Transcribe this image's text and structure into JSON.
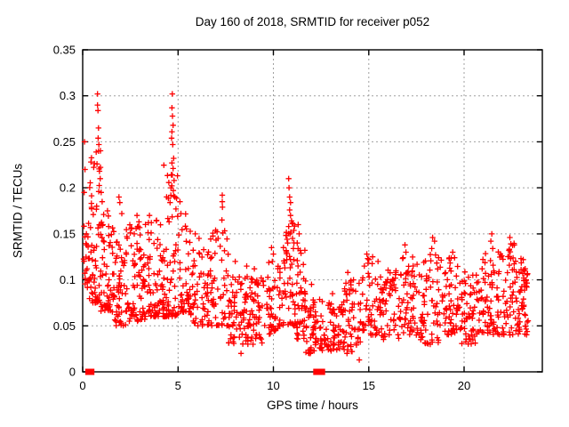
{
  "window": {
    "background": "#ffffff"
  },
  "chart_data": {
    "type": "scatter",
    "title": "Day 160 of 2018, SRMTID for receiver p052",
    "xlabel": "GPS time / hours",
    "ylabel": "SRMTID / TECUs",
    "xlim": [
      0,
      24.1
    ],
    "ylim": [
      0,
      0.35
    ],
    "xticks": {
      "values": [
        0,
        5,
        10,
        15,
        20
      ],
      "labels": [
        "0",
        "5",
        "10",
        "15",
        "20"
      ]
    },
    "yticks": {
      "values": [
        0,
        0.05,
        0.1,
        0.15,
        0.2,
        0.25,
        0.3,
        0.35
      ],
      "labels": [
        "0",
        "0.05",
        "0.1",
        "0.15",
        "0.2",
        "0.25",
        "0.3",
        "0.35"
      ]
    },
    "grid": {
      "show": true,
      "color": "#a0a0a0",
      "dash": "2,3"
    },
    "frame_color": "#000000",
    "text_color": "#000000",
    "legend": "none",
    "marker": {
      "shape": "plus",
      "color": "#ff0000",
      "size": 6.4,
      "stroke_width": 1.3
    },
    "zero_marker": {
      "shape": "filled-square",
      "color": "#ff0000",
      "size": 7
    },
    "zero_marker_x": [
      0.3,
      0.45,
      12.25,
      12.55
    ],
    "seed": 160,
    "cluster_bands": [
      [
        0.04,
        0.35,
        22,
        0.09,
        0.165,
        1.2
      ],
      [
        0.35,
        0.95,
        60,
        0.075,
        0.255,
        2.0
      ],
      [
        0.95,
        1.65,
        62,
        0.065,
        0.175,
        1.7
      ],
      [
        1.65,
        2.35,
        55,
        0.05,
        0.155,
        1.5
      ],
      [
        2.35,
        3.25,
        72,
        0.055,
        0.16,
        1.6
      ],
      [
        3.25,
        4.25,
        72,
        0.06,
        0.165,
        1.7
      ],
      [
        4.25,
        5.05,
        62,
        0.06,
        0.23,
        2.1
      ],
      [
        5.05,
        5.65,
        42,
        0.065,
        0.175,
        1.8
      ],
      [
        5.65,
        6.65,
        58,
        0.05,
        0.135,
        1.5
      ],
      [
        6.65,
        7.65,
        52,
        0.05,
        0.155,
        1.7
      ],
      [
        7.65,
        8.45,
        50,
        0.03,
        0.105,
        1.3
      ],
      [
        8.45,
        9.6,
        72,
        0.03,
        0.105,
        1.3
      ],
      [
        9.6,
        10.35,
        50,
        0.04,
        0.125,
        1.4
      ],
      [
        10.45,
        11.15,
        52,
        0.05,
        0.165,
        1.8
      ],
      [
        11.15,
        11.7,
        45,
        0.035,
        0.135,
        1.7
      ],
      [
        11.7,
        12.65,
        58,
        0.02,
        0.08,
        1.2
      ],
      [
        12.65,
        13.65,
        58,
        0.022,
        0.075,
        1.2
      ],
      [
        13.65,
        14.65,
        58,
        0.02,
        0.1,
        1.3
      ],
      [
        14.65,
        15.65,
        56,
        0.04,
        0.13,
        1.5
      ],
      [
        15.65,
        16.65,
        56,
        0.035,
        0.115,
        1.4
      ],
      [
        16.65,
        17.65,
        60,
        0.04,
        0.125,
        1.5
      ],
      [
        17.65,
        18.7,
        60,
        0.03,
        0.13,
        1.5
      ],
      [
        18.7,
        19.7,
        60,
        0.04,
        0.125,
        1.4
      ],
      [
        19.7,
        20.7,
        60,
        0.03,
        0.11,
        1.4
      ],
      [
        20.7,
        21.7,
        60,
        0.04,
        0.13,
        1.5
      ],
      [
        21.7,
        22.7,
        64,
        0.04,
        0.14,
        1.5
      ],
      [
        22.7,
        23.35,
        56,
        0.04,
        0.125,
        1.2
      ]
    ],
    "outlier_points": [
      [
        0.1,
        0.25
      ],
      [
        0.12,
        0.22
      ],
      [
        0.08,
        0.195
      ],
      [
        0.78,
        0.302
      ],
      [
        0.78,
        0.29
      ],
      [
        0.8,
        0.284
      ],
      [
        0.83,
        0.265
      ],
      [
        0.81,
        0.254
      ],
      [
        0.85,
        0.247
      ],
      [
        0.83,
        0.24
      ],
      [
        0.75,
        0.226
      ],
      [
        0.88,
        0.218
      ],
      [
        0.92,
        0.21
      ],
      [
        0.97,
        0.195
      ],
      [
        1.02,
        0.185
      ],
      [
        0.73,
        0.18
      ],
      [
        1.3,
        0.175
      ],
      [
        1.9,
        0.19
      ],
      [
        1.95,
        0.184
      ],
      [
        2.05,
        0.172
      ],
      [
        2.85,
        0.17
      ],
      [
        2.95,
        0.163
      ],
      [
        3.5,
        0.17
      ],
      [
        3.6,
        0.162
      ],
      [
        4.7,
        0.302
      ],
      [
        4.68,
        0.287
      ],
      [
        4.71,
        0.278
      ],
      [
        4.74,
        0.268
      ],
      [
        4.68,
        0.261
      ],
      [
        4.66,
        0.254
      ],
      [
        4.72,
        0.247
      ],
      [
        4.77,
        0.232
      ],
      [
        4.68,
        0.227
      ],
      [
        4.74,
        0.221
      ],
      [
        4.7,
        0.214
      ],
      [
        4.79,
        0.208
      ],
      [
        4.63,
        0.2
      ],
      [
        4.75,
        0.197
      ],
      [
        4.84,
        0.19
      ],
      [
        4.58,
        0.184
      ],
      [
        4.89,
        0.177
      ],
      [
        4.98,
        0.169
      ],
      [
        4.53,
        0.163
      ],
      [
        5.1,
        0.185
      ],
      [
        5.15,
        0.172
      ],
      [
        5.9,
        0.15
      ],
      [
        6.1,
        0.145
      ],
      [
        7.32,
        0.192
      ],
      [
        7.32,
        0.185
      ],
      [
        7.33,
        0.179
      ],
      [
        7.3,
        0.165
      ],
      [
        7.35,
        0.151
      ],
      [
        7.1,
        0.145
      ],
      [
        8.0,
        0.12
      ],
      [
        8.3,
        0.02
      ],
      [
        8.6,
        0.115
      ],
      [
        9.0,
        0.112
      ],
      [
        9.9,
        0.135
      ],
      [
        10.0,
        0.128
      ],
      [
        10.8,
        0.21
      ],
      [
        10.82,
        0.2
      ],
      [
        10.85,
        0.19
      ],
      [
        10.9,
        0.184
      ],
      [
        10.85,
        0.176
      ],
      [
        10.9,
        0.17
      ],
      [
        10.95,
        0.164
      ],
      [
        10.8,
        0.158
      ],
      [
        10.87,
        0.15
      ],
      [
        11.0,
        0.145
      ],
      [
        10.75,
        0.14
      ],
      [
        11.05,
        0.134
      ],
      [
        11.3,
        0.16
      ],
      [
        11.35,
        0.15
      ],
      [
        11.25,
        0.14
      ],
      [
        11.4,
        0.132
      ],
      [
        12.0,
        0.095
      ],
      [
        13.1,
        0.085
      ],
      [
        13.9,
        0.108
      ],
      [
        14.2,
        0.1
      ],
      [
        14.5,
        0.013
      ],
      [
        14.9,
        0.128
      ],
      [
        15.0,
        0.122
      ],
      [
        15.2,
        0.125
      ],
      [
        16.9,
        0.138
      ],
      [
        16.95,
        0.13
      ],
      [
        16.8,
        0.124
      ],
      [
        18.35,
        0.146
      ],
      [
        18.45,
        0.142
      ],
      [
        18.3,
        0.134
      ],
      [
        18.5,
        0.127
      ],
      [
        19.4,
        0.13
      ],
      [
        19.5,
        0.124
      ],
      [
        21.45,
        0.15
      ],
      [
        21.4,
        0.142
      ],
      [
        21.5,
        0.134
      ],
      [
        21.9,
        0.128
      ],
      [
        22.4,
        0.146
      ],
      [
        22.45,
        0.139
      ],
      [
        22.35,
        0.132
      ],
      [
        23.1,
        0.122
      ],
      [
        23.2,
        0.112
      ],
      [
        23.25,
        0.1
      ]
    ]
  }
}
